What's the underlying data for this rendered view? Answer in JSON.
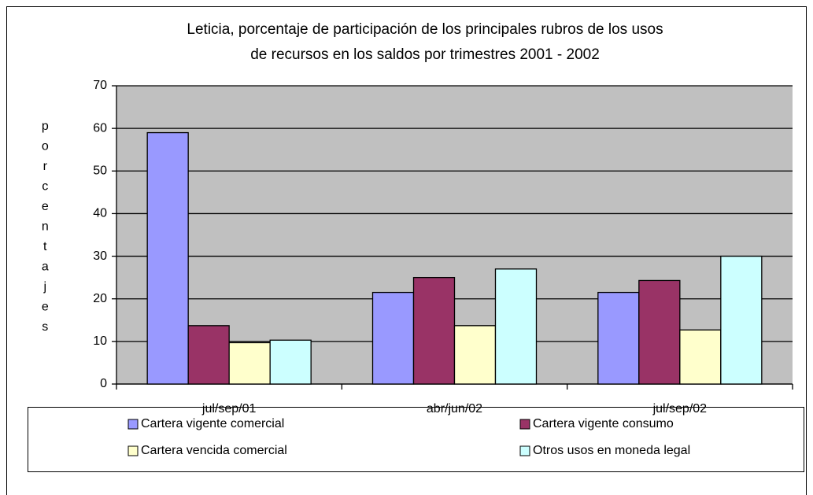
{
  "chart_data": {
    "type": "bar",
    "title": [
      "Leticia, porcentaje de participación de los principales rubros de los usos",
      "de recursos en los saldos por trimestres 2001 - 2002"
    ],
    "y_label": "porcentajes",
    "categories": [
      "jul/sep/01",
      "abr/jun/02",
      "jul/sep/02"
    ],
    "series": [
      {
        "name": "Cartera vigente comercial",
        "color": "#9999ff",
        "values": [
          59,
          21.5,
          21.5
        ]
      },
      {
        "name": "Cartera vigente consumo",
        "color": "#993366",
        "values": [
          13.7,
          25,
          24.3
        ]
      },
      {
        "name": "Cartera vencida comercial",
        "color": "#ffffcc",
        "values": [
          9.7,
          13.7,
          12.7
        ]
      },
      {
        "name": "Otros usos en moneda legal",
        "color": "#ccffff",
        "values": [
          10.3,
          27,
          30
        ]
      }
    ],
    "ylim": [
      0,
      70
    ],
    "yticks": [
      0,
      10,
      20,
      30,
      40,
      50,
      60,
      70
    ],
    "grid": true,
    "plot_background": "#c0c0c0"
  }
}
